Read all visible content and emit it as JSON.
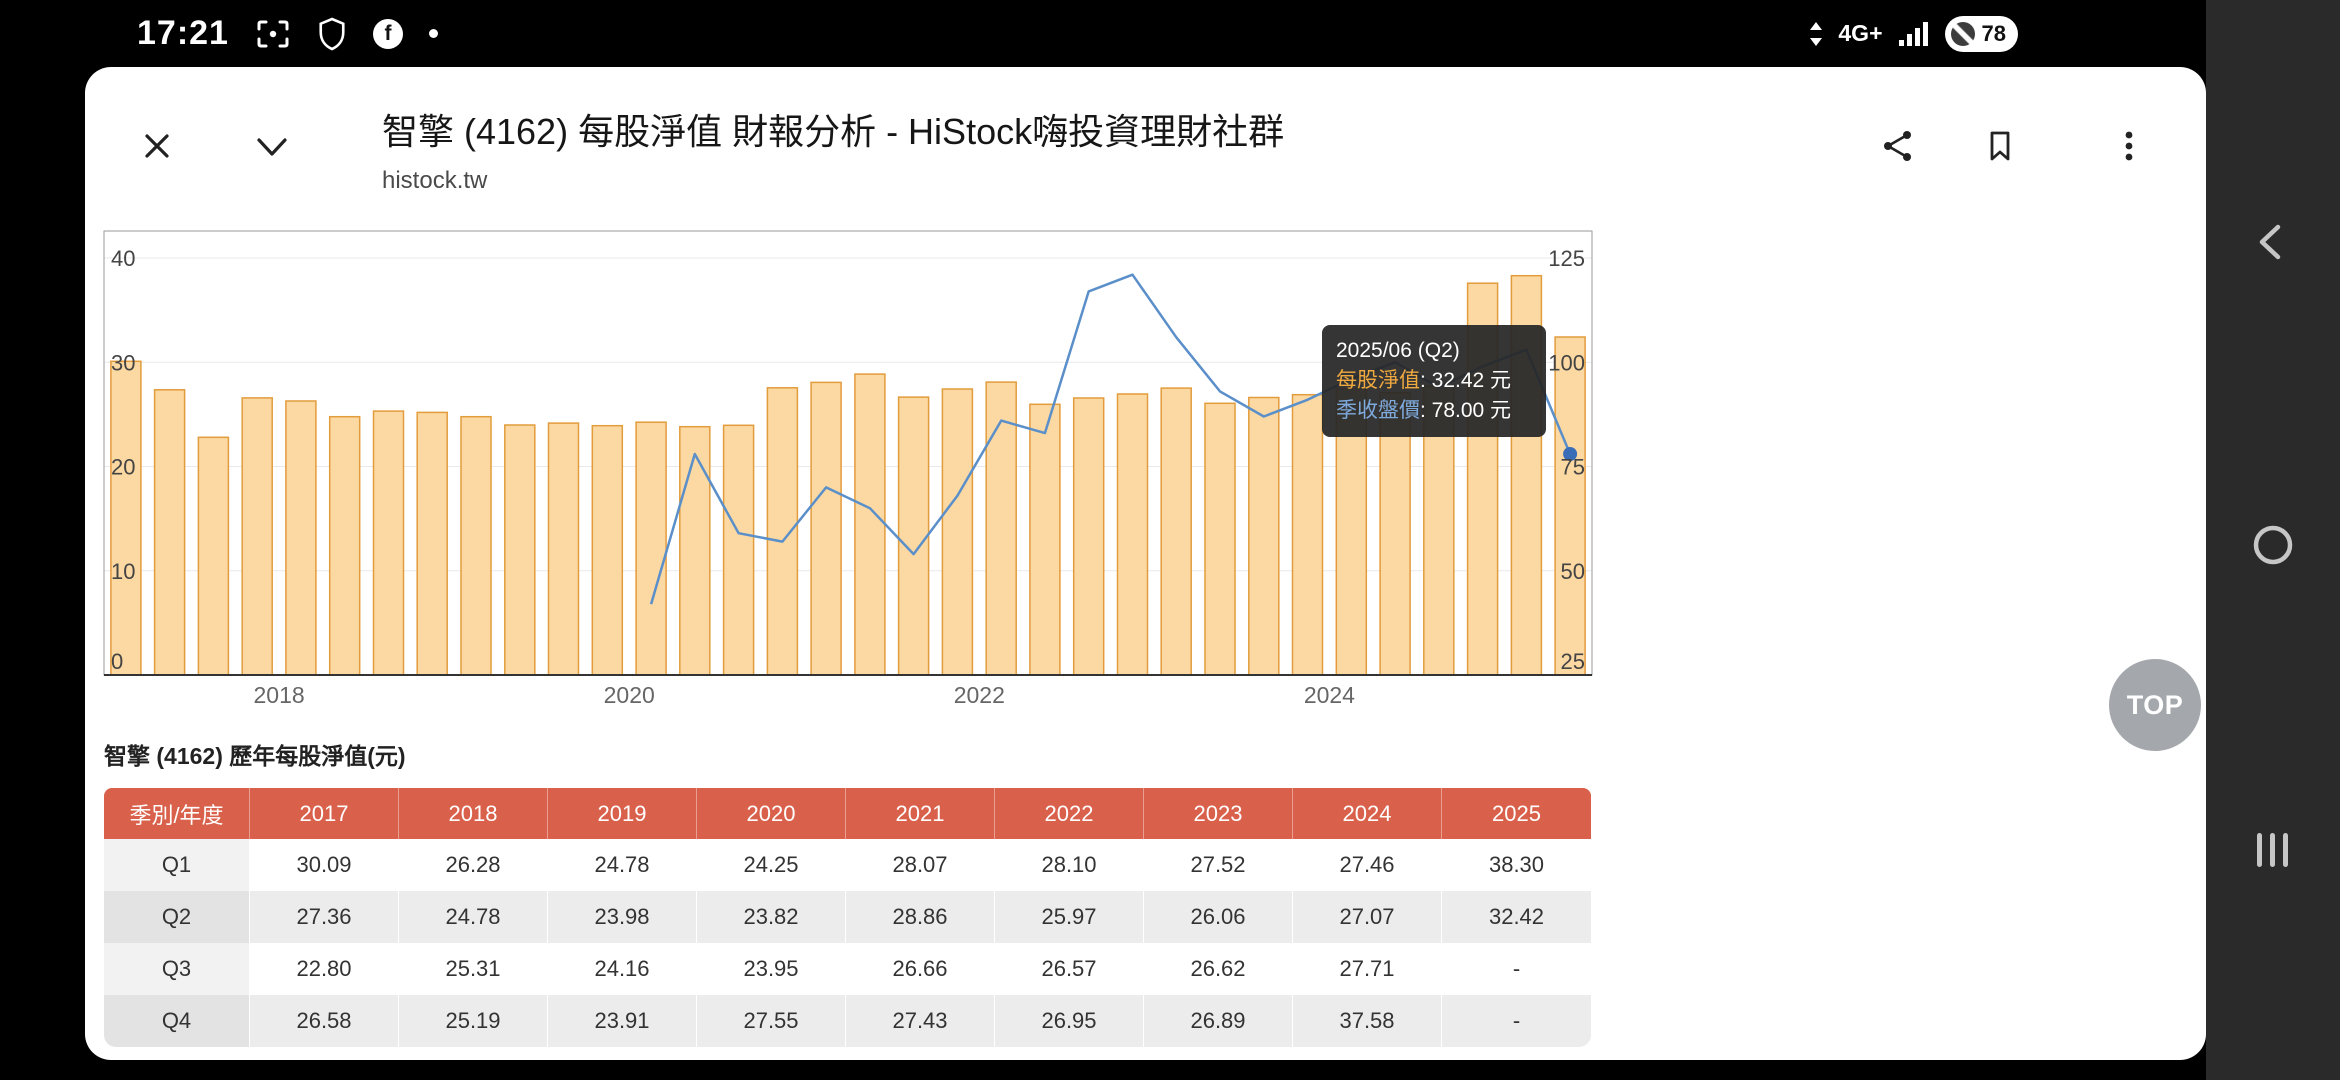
{
  "status_bar": {
    "time": "17:21",
    "network": "4G+",
    "battery_percent": "78"
  },
  "browser": {
    "title": "智擎 (4162) 每股淨值 財報分析 - HiStock嗨投資理財社群",
    "url": "histock.tw"
  },
  "icons": {
    "close": "x-cross",
    "collapse": "chevron-down",
    "share": "share-nodes",
    "bookmark": "bookmark-outline",
    "more": "kebab-vertical",
    "screen_capture": "crop-frame",
    "privacy": "shield",
    "facebook_glyph": "f",
    "notification": "dot",
    "network_activity": "up-down-arrows",
    "signal": "signal-bars",
    "battery_saver": "circle-slash",
    "nav_back": "chevron-left",
    "nav_home": "circle-outline",
    "nav_recents": "three-vertical-bars"
  },
  "tooltip": {
    "title": "2025/06 (Q2)",
    "networth_label": "每股淨值",
    "networth_value": ": 32.42 元",
    "close_label": "季收盤價",
    "close_value": ": 78.00 元",
    "networth_color": "#efa93f",
    "close_color": "#7ea9dc"
  },
  "chart_data": {
    "type": "bar+line",
    "bars_start_quarter": "2017Q1",
    "series": [
      {
        "name": "每股淨值(元)",
        "type": "bar",
        "axis": "left",
        "values": [
          30.09,
          27.36,
          22.8,
          26.58,
          26.28,
          24.78,
          25.31,
          25.19,
          24.78,
          23.98,
          24.16,
          23.91,
          24.25,
          23.82,
          23.95,
          27.55,
          28.07,
          28.86,
          26.66,
          27.43,
          28.1,
          25.97,
          26.57,
          26.95,
          27.52,
          26.06,
          26.62,
          26.89,
          27.46,
          27.07,
          27.71,
          37.58,
          38.3,
          32.42
        ]
      },
      {
        "name": "季收盤價(元)",
        "type": "line",
        "axis": "right",
        "start_quarter": "2020Q1",
        "start_index": 12,
        "estimated": true,
        "values": [
          42,
          78,
          59,
          57,
          70,
          65,
          54,
          68,
          86,
          83,
          117,
          121,
          106,
          93,
          87,
          91,
          96,
          100,
          94,
          99,
          103,
          78
        ]
      }
    ],
    "left_axis": {
      "min": 0,
      "max": 42.6,
      "ticks": [
        0,
        10,
        20,
        30,
        40
      ]
    },
    "right_axis": {
      "min": 25,
      "max": 131.5,
      "ticks": [
        25,
        50,
        75,
        100,
        125
      ]
    },
    "x_tick_labels": [
      "2018",
      "2020",
      "2022",
      "2024"
    ],
    "grid": true,
    "colors": {
      "bar_fill": "#fcd9a2",
      "bar_border": "#e29c3c",
      "line": "#5b8fc9",
      "dot": "#3a6db8"
    }
  },
  "table": {
    "title": "智擎 (4162) 歷年每股淨值(元)",
    "header": [
      "季別/年度",
      "2017",
      "2018",
      "2019",
      "2020",
      "2021",
      "2022",
      "2023",
      "2024",
      "2025"
    ],
    "rows": [
      [
        "Q1",
        "30.09",
        "26.28",
        "24.78",
        "24.25",
        "28.07",
        "28.10",
        "27.52",
        "27.46",
        "38.30"
      ],
      [
        "Q2",
        "27.36",
        "24.78",
        "23.98",
        "23.82",
        "28.86",
        "25.97",
        "26.06",
        "27.07",
        "32.42"
      ],
      [
        "Q3",
        "22.80",
        "25.31",
        "24.16",
        "23.95",
        "26.66",
        "26.57",
        "26.62",
        "27.71",
        "-"
      ],
      [
        "Q4",
        "26.58",
        "25.19",
        "23.91",
        "27.55",
        "27.43",
        "26.95",
        "26.89",
        "37.58",
        "-"
      ]
    ],
    "header_bg": "#d9604a"
  },
  "top_button_label": "TOP"
}
